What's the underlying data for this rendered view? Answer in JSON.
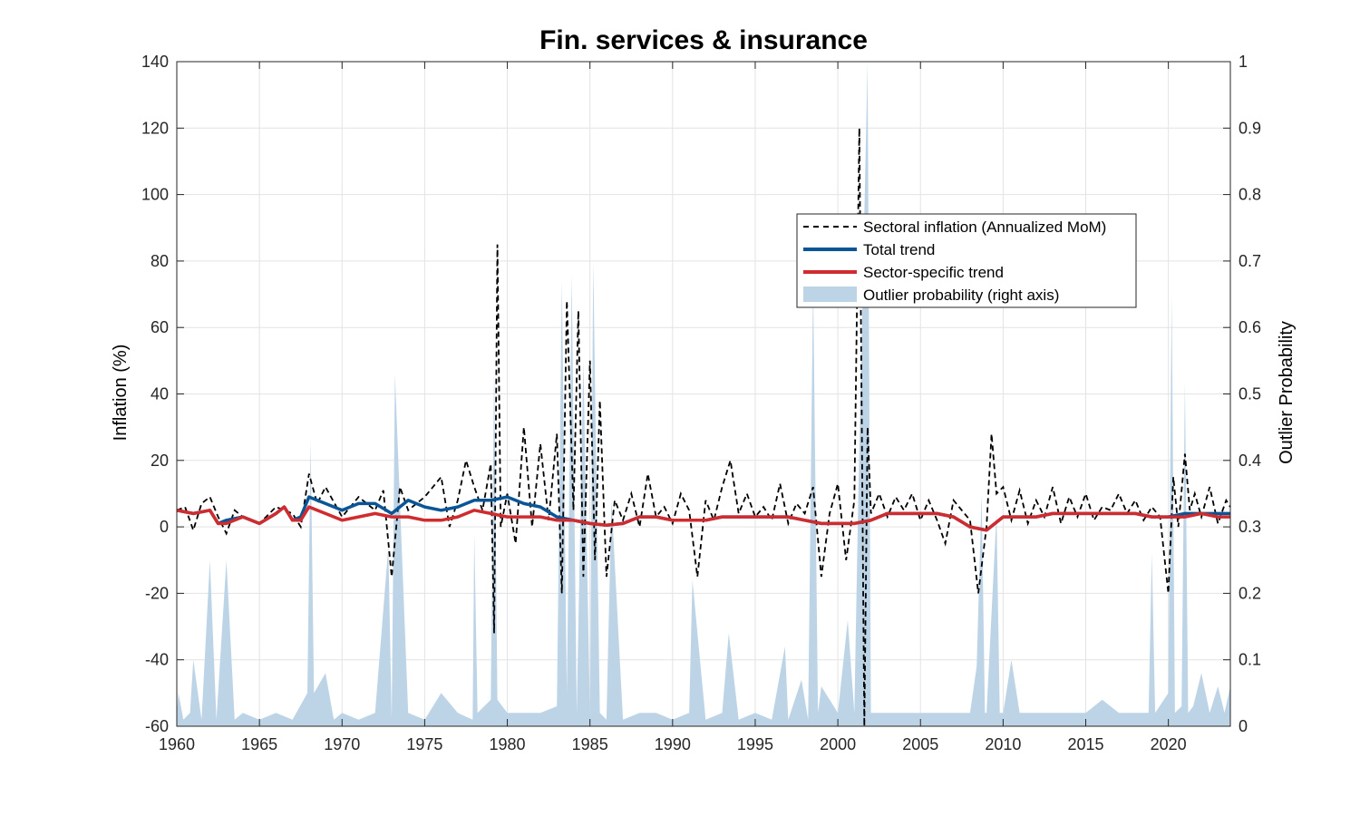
{
  "chart_data": {
    "type": "line",
    "title": "Fin. services & insurance",
    "ylabel": "Inflation (%)",
    "y2label": "Outlier Probability",
    "xlabel": "",
    "xlim": [
      1960,
      2023.75
    ],
    "ylim": [
      -60,
      140
    ],
    "y2lim": [
      0,
      1
    ],
    "grid": true,
    "legend_position": "upper-right-center",
    "xticks": [
      1960,
      1965,
      1970,
      1975,
      1980,
      1985,
      1990,
      1995,
      2000,
      2005,
      2010,
      2015,
      2020
    ],
    "yticks": [
      140,
      120,
      100,
      80,
      60,
      40,
      20,
      0,
      -20,
      -40,
      -60
    ],
    "y2ticks": [
      "1",
      "0.9",
      "0.8",
      "0.7",
      "0.6",
      "0.5",
      "0.4",
      "0.3",
      "0.2",
      "0.1",
      "0"
    ],
    "legend": [
      {
        "key": "sectoral",
        "label": "Sectoral inflation (Annualized MoM)"
      },
      {
        "key": "total",
        "label": "Total trend"
      },
      {
        "key": "sector",
        "label": "Sector-specific trend"
      },
      {
        "key": "outlier",
        "label": "Outlier probability (right axis)"
      }
    ],
    "colors": {
      "sectoral": "#000000",
      "total": "#0a5596",
      "sector": "#d02c2f",
      "outlier": "#bdd4e7",
      "grid": "#e3e3e3",
      "axis": "#262626"
    },
    "series": [
      {
        "key": "total",
        "axis": "left",
        "x": [
          1960,
          1961,
          1962,
          1962.5,
          1963,
          1964,
          1965,
          1966,
          1966.5,
          1967,
          1967.5,
          1968,
          1968.5,
          1969,
          1970,
          1971,
          1972,
          1973,
          1974,
          1975,
          1976,
          1977,
          1978,
          1979,
          1980,
          1981,
          1982,
          1983,
          1984,
          1985,
          1986,
          1987,
          1988,
          1989,
          1990,
          1991,
          1992,
          1993,
          1994,
          1995,
          1996,
          1997,
          1998,
          1999,
          2000,
          2001,
          2002,
          2003,
          2004,
          2005,
          2006,
          2007,
          2008,
          2009,
          2010,
          2011,
          2012,
          2013,
          2014,
          2015,
          2016,
          2017,
          2018,
          2019,
          2020,
          2021,
          2022,
          2023,
          2023.75
        ],
        "values": [
          5,
          4,
          5,
          1,
          2,
          3,
          1,
          4,
          6,
          2,
          3,
          9,
          8,
          7,
          5,
          7,
          7,
          4,
          8,
          6,
          5,
          6,
          8,
          8,
          9,
          7,
          6,
          3,
          2,
          1,
          0.5,
          1,
          3,
          3,
          2,
          2,
          2,
          3,
          3,
          3,
          3,
          3,
          2,
          1,
          1,
          1,
          2,
          4,
          4,
          4,
          4,
          3,
          0,
          -1,
          3,
          3,
          3,
          4,
          4,
          4,
          4,
          4,
          4,
          3,
          3,
          4,
          4,
          4,
          4
        ]
      },
      {
        "key": "sector",
        "axis": "left",
        "x": [
          1960,
          1961,
          1962,
          1962.5,
          1963,
          1964,
          1965,
          1966,
          1966.5,
          1967,
          1967.5,
          1968,
          1968.5,
          1969,
          1970,
          1971,
          1972,
          1973,
          1974,
          1975,
          1976,
          1977,
          1978,
          1979,
          1980,
          1981,
          1982,
          1983,
          1984,
          1985,
          1986,
          1987,
          1988,
          1989,
          1990,
          1991,
          1992,
          1993,
          1994,
          1995,
          1996,
          1997,
          1998,
          1999,
          2000,
          2001,
          2002,
          2003,
          2004,
          2005,
          2006,
          2007,
          2008,
          2009,
          2010,
          2011,
          2012,
          2013,
          2014,
          2015,
          2016,
          2017,
          2018,
          2019,
          2020,
          2021,
          2022,
          2023,
          2023.75
        ],
        "values": [
          5,
          4,
          5,
          1,
          1,
          3,
          1,
          4,
          6,
          2,
          2,
          6,
          5,
          4,
          2,
          3,
          4,
          3,
          3,
          2,
          2,
          3,
          5,
          4,
          3,
          3,
          3,
          2,
          2,
          1,
          0.5,
          1,
          3,
          3,
          2,
          2,
          2,
          3,
          3,
          3,
          3,
          3,
          2,
          1,
          1,
          1,
          2,
          4,
          4,
          4,
          4,
          3,
          0,
          -1,
          3,
          3,
          3,
          4,
          4,
          4,
          4,
          4,
          4,
          3,
          3,
          3,
          4,
          3,
          3
        ]
      },
      {
        "key": "sectoral",
        "axis": "left",
        "x": [
          1960,
          1960.5,
          1961,
          1961.5,
          1962,
          1962.5,
          1963,
          1963.5,
          1964,
          1965,
          1966,
          1967,
          1967.5,
          1968,
          1968.5,
          1969,
          1970,
          1971,
          1972,
          1972.5,
          1973,
          1973.5,
          1974,
          1975,
          1976,
          1976.5,
          1977,
          1977.5,
          1978,
          1978.5,
          1979,
          1979.2,
          1979.4,
          1979.6,
          1980,
          1980.5,
          1981,
          1981.5,
          1982,
          1982.5,
          1983,
          1983.3,
          1983.6,
          1984,
          1984.3,
          1984.6,
          1985,
          1985.3,
          1985.6,
          1986,
          1986.5,
          1987,
          1987.5,
          1988,
          1988.5,
          1989,
          1989.5,
          1990,
          1990.5,
          1991,
          1991.5,
          1992,
          1992.5,
          1993,
          1993.5,
          1994,
          1994.5,
          1995,
          1995.5,
          1996,
          1996.5,
          1997,
          1997.5,
          1998,
          1998.5,
          1999,
          1999.5,
          2000,
          2000.5,
          2001,
          2001.3,
          2001.6,
          2001.8,
          2002,
          2002.5,
          2003,
          2003.5,
          2004,
          2004.5,
          2005,
          2005.5,
          2006,
          2006.5,
          2007,
          2007.5,
          2008,
          2008.5,
          2009,
          2009.3,
          2009.6,
          2010,
          2010.5,
          2011,
          2011.5,
          2012,
          2012.5,
          2013,
          2013.5,
          2014,
          2014.5,
          2015,
          2015.5,
          2016,
          2016.5,
          2017,
          2017.5,
          2018,
          2018.5,
          2019,
          2019.5,
          2020,
          2020.3,
          2020.6,
          2021,
          2021.3,
          2021.6,
          2022,
          2022.5,
          2023,
          2023.5,
          2023.75
        ],
        "values": [
          5,
          6,
          -1,
          7,
          9,
          3,
          -2,
          5,
          3,
          1,
          6,
          4,
          0,
          16,
          7,
          12,
          3,
          9,
          5,
          11,
          -15,
          12,
          5,
          9,
          15,
          0,
          8,
          20,
          12,
          5,
          19,
          -32,
          85,
          0,
          10,
          -5,
          30,
          0,
          25,
          2,
          28,
          -20,
          68,
          5,
          65,
          -15,
          50,
          -10,
          38,
          -15,
          8,
          2,
          10,
          0,
          16,
          3,
          6,
          1,
          10,
          5,
          -15,
          8,
          2,
          12,
          20,
          4,
          10,
          3,
          6,
          2,
          13,
          1,
          7,
          4,
          12,
          -15,
          4,
          13,
          -10,
          8,
          120,
          -60,
          30,
          4,
          10,
          3,
          9,
          5,
          10,
          2,
          8,
          2,
          -5,
          8,
          5,
          2,
          -20,
          0,
          28,
          10,
          12,
          2,
          11,
          1,
          8,
          3,
          12,
          1,
          9,
          3,
          10,
          2,
          6,
          5,
          10,
          4,
          8,
          2,
          6,
          3,
          -20,
          15,
          0,
          22,
          5,
          10,
          3,
          12,
          1,
          8,
          6
        ]
      },
      {
        "key": "outlier",
        "axis": "right",
        "x": [
          1960,
          1960.1,
          1960.4,
          1960.8,
          1961,
          1961.5,
          1962,
          1962.4,
          1963,
          1963.5,
          1964,
          1965,
          1966,
          1967,
          1967.9,
          1968.1,
          1968.3,
          1969,
          1969.5,
          1970,
          1971,
          1972,
          1972.8,
          1973,
          1973.2,
          1974,
          1975,
          1976,
          1977,
          1977.9,
          1978,
          1978.2,
          1979,
          1979.2,
          1979.4,
          1980,
          1981,
          1982,
          1983,
          1983.3,
          1983.6,
          1983.9,
          1984.2,
          1984.6,
          1985,
          1985.2,
          1985.6,
          1986,
          1986.3,
          1987,
          1988,
          1989,
          1990,
          1991,
          1991.2,
          1992,
          1993,
          1993.4,
          1994,
          1995,
          1996,
          1996.8,
          1997,
          1997.8,
          1998.2,
          1998.5,
          1998.8,
          1999,
          2000,
          2000.6,
          2001,
          2001.2,
          2001.8,
          2002,
          2003,
          2004,
          2005,
          2006,
          2007,
          2008,
          2008.4,
          2008.7,
          2008.9,
          2009,
          2009.6,
          2009.8,
          2010,
          2010.5,
          2011,
          2012,
          2013,
          2014,
          2015,
          2016,
          2017,
          2018,
          2018.8,
          2019,
          2019.2,
          2020,
          2020.2,
          2020.4,
          2020.8,
          2021,
          2021.2,
          2021.5,
          2022,
          2022.5,
          2023,
          2023.4,
          2023.75
        ],
        "values": [
          0.02,
          0.05,
          0.01,
          0.02,
          0.1,
          0.01,
          0.25,
          0.01,
          0.25,
          0.01,
          0.02,
          0.01,
          0.02,
          0.01,
          0.05,
          0.43,
          0.05,
          0.08,
          0.01,
          0.02,
          0.01,
          0.02,
          0.27,
          0.01,
          0.53,
          0.02,
          0.01,
          0.05,
          0.02,
          0.01,
          0.29,
          0.02,
          0.04,
          0.54,
          0.04,
          0.02,
          0.02,
          0.02,
          0.03,
          0.67,
          0.05,
          0.68,
          0.02,
          0.55,
          0.02,
          0.7,
          0.02,
          0.01,
          0.34,
          0.01,
          0.02,
          0.02,
          0.01,
          0.02,
          0.22,
          0.01,
          0.02,
          0.14,
          0.01,
          0.02,
          0.01,
          0.12,
          0.01,
          0.07,
          0.01,
          0.67,
          0.02,
          0.06,
          0.02,
          0.16,
          0.02,
          0.3,
          1.0,
          0.02,
          0.02,
          0.02,
          0.02,
          0.02,
          0.02,
          0.02,
          0.09,
          0.35,
          0.02,
          0.02,
          0.32,
          0.02,
          0.02,
          0.1,
          0.02,
          0.02,
          0.02,
          0.02,
          0.02,
          0.04,
          0.02,
          0.02,
          0.02,
          0.26,
          0.02,
          0.05,
          0.65,
          0.02,
          0.03,
          0.52,
          0.02,
          0.03,
          0.08,
          0.02,
          0.06,
          0.02,
          0.06
        ]
      }
    ]
  }
}
